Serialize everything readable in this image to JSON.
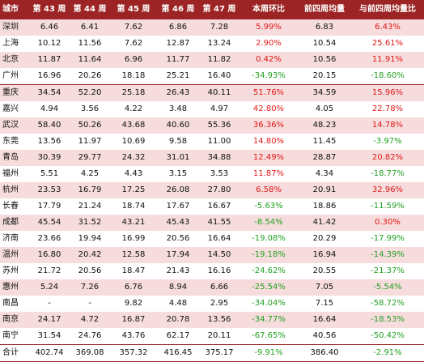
{
  "headers": [
    "城市",
    "第 43 周",
    "第 44 周",
    "第 45 周",
    "第 46 周",
    "第 47 周",
    "本周环比",
    "前四周均量",
    "与前四周均量比"
  ],
  "rows": [
    {
      "city": "深圳",
      "w43": "6.46",
      "w44": "6.41",
      "w45": "7.62",
      "w46": "6.86",
      "w47": "7.28",
      "wow": "5.99%",
      "avg4": "6.83",
      "vs_avg": "6.43%",
      "wow_sign": "up",
      "avg_sign": "up",
      "shade": "pink"
    },
    {
      "city": "上海",
      "w43": "10.12",
      "w44": "11.56",
      "w45": "7.62",
      "w46": "12.87",
      "w47": "13.24",
      "wow": "2.90%",
      "avg4": "10.54",
      "vs_avg": "25.61%",
      "wow_sign": "up",
      "avg_sign": "up",
      "shade": "white"
    },
    {
      "city": "北京",
      "w43": "11.87",
      "w44": "11.64",
      "w45": "6.96",
      "w46": "11.77",
      "w47": "11.82",
      "wow": "0.42%",
      "avg4": "10.56",
      "vs_avg": "11.91%",
      "wow_sign": "up",
      "avg_sign": "up",
      "shade": "pink"
    },
    {
      "city": "广州",
      "w43": "16.96",
      "w44": "20.26",
      "w45": "18.18",
      "w46": "25.21",
      "w47": "16.40",
      "wow": "-34.93%",
      "avg4": "20.15",
      "vs_avg": "-18.60%",
      "wow_sign": "down",
      "avg_sign": "down",
      "shade": "white"
    },
    {
      "city": "重庆",
      "w43": "34.54",
      "w44": "52.20",
      "w45": "25.18",
      "w46": "26.43",
      "w47": "40.11",
      "wow": "51.76%",
      "avg4": "34.59",
      "vs_avg": "15.96%",
      "wow_sign": "up",
      "avg_sign": "up",
      "shade": "pink",
      "sep": true
    },
    {
      "city": "嘉兴",
      "w43": "4.94",
      "w44": "3.56",
      "w45": "4.22",
      "w46": "3.48",
      "w47": "4.97",
      "wow": "42.80%",
      "avg4": "4.05",
      "vs_avg": "22.78%",
      "wow_sign": "up",
      "avg_sign": "up",
      "shade": "white"
    },
    {
      "city": "武汉",
      "w43": "58.40",
      "w44": "50.26",
      "w45": "43.68",
      "w46": "40.60",
      "w47": "55.36",
      "wow": "36.36%",
      "avg4": "48.23",
      "vs_avg": "14.78%",
      "wow_sign": "up",
      "avg_sign": "up",
      "shade": "pink"
    },
    {
      "city": "东莞",
      "w43": "13.56",
      "w44": "11.97",
      "w45": "10.69",
      "w46": "9.58",
      "w47": "11.00",
      "wow": "14.80%",
      "avg4": "11.45",
      "vs_avg": "-3.97%",
      "wow_sign": "up",
      "avg_sign": "down",
      "shade": "white"
    },
    {
      "city": "青岛",
      "w43": "30.39",
      "w44": "29.77",
      "w45": "24.32",
      "w46": "31.01",
      "w47": "34.88",
      "wow": "12.49%",
      "avg4": "28.87",
      "vs_avg": "20.82%",
      "wow_sign": "up",
      "avg_sign": "up",
      "shade": "pink"
    },
    {
      "city": "福州",
      "w43": "5.51",
      "w44": "4.25",
      "w45": "4.43",
      "w46": "3.15",
      "w47": "3.53",
      "wow": "11.87%",
      "avg4": "4.34",
      "vs_avg": "-18.77%",
      "wow_sign": "up",
      "avg_sign": "down",
      "shade": "white"
    },
    {
      "city": "杭州",
      "w43": "23.53",
      "w44": "16.79",
      "w45": "17.25",
      "w46": "26.08",
      "w47": "27.80",
      "wow": "6.58%",
      "avg4": "20.91",
      "vs_avg": "32.96%",
      "wow_sign": "up",
      "avg_sign": "up",
      "shade": "pink"
    },
    {
      "city": "长春",
      "w43": "17.79",
      "w44": "21.24",
      "w45": "18.74",
      "w46": "17.67",
      "w47": "16.67",
      "wow": "-5.63%",
      "avg4": "18.86",
      "vs_avg": "-11.59%",
      "wow_sign": "down",
      "avg_sign": "down",
      "shade": "white"
    },
    {
      "city": "成都",
      "w43": "45.54",
      "w44": "31.52",
      "w45": "43.21",
      "w46": "45.43",
      "w47": "41.55",
      "wow": "-8.54%",
      "avg4": "41.42",
      "vs_avg": "0.30%",
      "wow_sign": "down",
      "avg_sign": "up",
      "shade": "pink"
    },
    {
      "city": "济南",
      "w43": "23.66",
      "w44": "19.94",
      "w45": "16.99",
      "w46": "20.56",
      "w47": "16.64",
      "wow": "-19.08%",
      "avg4": "20.29",
      "vs_avg": "-17.99%",
      "wow_sign": "down",
      "avg_sign": "down",
      "shade": "white"
    },
    {
      "city": "温州",
      "w43": "16.80",
      "w44": "20.42",
      "w45": "12.58",
      "w46": "17.94",
      "w47": "14.50",
      "wow": "-19.18%",
      "avg4": "16.94",
      "vs_avg": "-14.39%",
      "wow_sign": "down",
      "avg_sign": "down",
      "shade": "pink"
    },
    {
      "city": "苏州",
      "w43": "21.72",
      "w44": "20.56",
      "w45": "18.47",
      "w46": "21.43",
      "w47": "16.16",
      "wow": "-24.62%",
      "avg4": "20.55",
      "vs_avg": "-21.37%",
      "wow_sign": "down",
      "avg_sign": "down",
      "shade": "white"
    },
    {
      "city": "惠州",
      "w43": "5.24",
      "w44": "7.26",
      "w45": "6.76",
      "w46": "8.94",
      "w47": "6.66",
      "wow": "-25.54%",
      "avg4": "7.05",
      "vs_avg": "-5.54%",
      "wow_sign": "down",
      "avg_sign": "down",
      "shade": "pink"
    },
    {
      "city": "南昌",
      "w43": "-",
      "w44": "-",
      "w45": "9.82",
      "w46": "4.48",
      "w47": "2.95",
      "wow": "-34.04%",
      "avg4": "7.15",
      "vs_avg": "-58.72%",
      "wow_sign": "down",
      "avg_sign": "down",
      "shade": "white"
    },
    {
      "city": "南京",
      "w43": "24.17",
      "w44": "4.72",
      "w45": "16.87",
      "w46": "20.78",
      "w47": "13.56",
      "wow": "-34.77%",
      "avg4": "16.64",
      "vs_avg": "-18.53%",
      "wow_sign": "down",
      "avg_sign": "down",
      "shade": "pink"
    },
    {
      "city": "南宁",
      "w43": "31.54",
      "w44": "24.76",
      "w45": "43.76",
      "w46": "62.17",
      "w47": "20.11",
      "wow": "-67.65%",
      "avg4": "40.56",
      "vs_avg": "-50.42%",
      "wow_sign": "down",
      "avg_sign": "down",
      "shade": "white"
    }
  ],
  "total": {
    "city": "合计",
    "w43": "402.74",
    "w44": "369.08",
    "w45": "357.32",
    "w46": "416.45",
    "w47": "375.17",
    "wow": "-9.91%",
    "avg4": "386.40",
    "vs_avg": "-2.91%",
    "wow_sign": "down",
    "avg_sign": "down"
  },
  "colors": {
    "header_bg": "#9c2424",
    "header_text": "#ffffff",
    "row_shade": "#f6dcdc",
    "positive": "#e01818",
    "negative": "#22a022"
  }
}
